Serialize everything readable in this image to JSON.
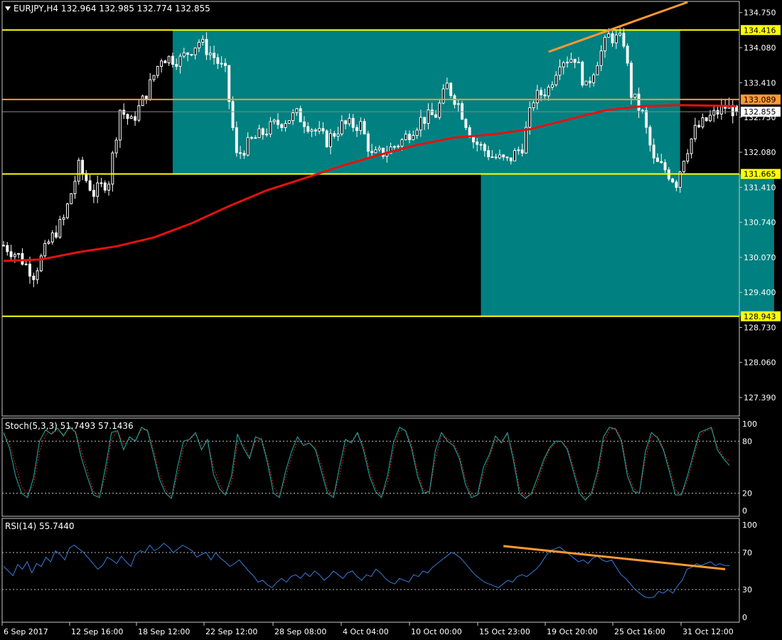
{
  "colors": {
    "background": "#000000",
    "frame": "#c8c8c8",
    "axis_text": "#ffffff",
    "candle": "#ffffff",
    "zone": "#008080",
    "level_line": "#ffff00",
    "orange": "#ff9933",
    "ma": "#e81010",
    "stoch_main": "#20b2aa",
    "stoch_signal": "#e02020",
    "rsi": "#3a7ad8",
    "bid_label_bg": "#ffffff",
    "bid_label_text": "#000000"
  },
  "chart_data": [
    {
      "type": "candlestick",
      "title": "EURJPY,H4  132.964 132.985 132.774 132.855",
      "symbol": "EURJPY,H4",
      "ohlc": {
        "open": 132.964,
        "high": 132.985,
        "low": 132.774,
        "close": 132.855
      },
      "ylim": [
        127.05,
        134.95
      ],
      "y_ticks": [
        "134.750",
        "134.080",
        "133.410",
        "132.750",
        "132.080",
        "131.410",
        "130.740",
        "130.070",
        "129.400",
        "128.730",
        "128.060",
        "127.390"
      ],
      "x_ticks": [
        "6 Sep 2017",
        "12 Sep 16:00",
        "18 Sep 12:00",
        "22 Sep 12:00",
        "28 Sep 08:00",
        "4 Oct 04:00",
        "10 Oct 00:00",
        "15 Oct 23:00",
        "19 Oct 20:00",
        "25 Oct 16:00",
        "31 Oct 12:00"
      ],
      "levels": [
        {
          "label": "134.416",
          "value": 134.416,
          "color": "#ffff00"
        },
        {
          "label": "133.089",
          "value": 133.089,
          "color": "#ff9933"
        },
        {
          "label": "131.665",
          "value": 131.665,
          "color": "#ffff00"
        },
        {
          "label": "128.943",
          "value": 128.943,
          "color": "#ffff00"
        }
      ],
      "bid_label": "132.855",
      "zones": [
        {
          "from_bar": 45,
          "to_bar": 180,
          "top": 134.416,
          "bottom": 131.665
        },
        {
          "from_bar": 127,
          "to_bar": 205,
          "top": 131.665,
          "bottom": 128.943
        }
      ],
      "trendline": [
        {
          "bar": 145,
          "price": 134.0
        },
        {
          "bar": 182,
          "price": 134.95
        }
      ],
      "close_path": [
        {
          "bar": 0,
          "price": 130.3
        },
        {
          "bar": 4,
          "price": 130.1
        },
        {
          "bar": 8,
          "price": 129.75
        },
        {
          "bar": 12,
          "price": 130.35
        },
        {
          "bar": 16,
          "price": 130.8
        },
        {
          "bar": 20,
          "price": 131.8
        },
        {
          "bar": 24,
          "price": 131.3
        },
        {
          "bar": 28,
          "price": 131.55
        },
        {
          "bar": 31,
          "price": 132.9
        },
        {
          "bar": 34,
          "price": 132.65
        },
        {
          "bar": 38,
          "price": 133.2
        },
        {
          "bar": 42,
          "price": 133.9
        },
        {
          "bar": 47,
          "price": 133.85
        },
        {
          "bar": 52,
          "price": 134.2
        },
        {
          "bar": 56,
          "price": 133.9
        },
        {
          "bar": 59,
          "price": 133.6
        },
        {
          "bar": 62,
          "price": 132.0
        },
        {
          "bar": 66,
          "price": 132.3
        },
        {
          "bar": 72,
          "price": 132.6
        },
        {
          "bar": 78,
          "price": 132.8
        },
        {
          "bar": 82,
          "price": 132.55
        },
        {
          "bar": 86,
          "price": 132.3
        },
        {
          "bar": 90,
          "price": 132.6
        },
        {
          "bar": 95,
          "price": 132.6
        },
        {
          "bar": 98,
          "price": 132.0
        },
        {
          "bar": 102,
          "price": 132.1
        },
        {
          "bar": 106,
          "price": 132.3
        },
        {
          "bar": 111,
          "price": 132.7
        },
        {
          "bar": 115,
          "price": 132.8
        },
        {
          "bar": 118,
          "price": 133.35
        },
        {
          "bar": 121,
          "price": 133.0
        },
        {
          "bar": 125,
          "price": 132.3
        },
        {
          "bar": 130,
          "price": 132.0
        },
        {
          "bar": 134,
          "price": 131.9
        },
        {
          "bar": 138,
          "price": 132.2
        },
        {
          "bar": 141,
          "price": 133.1
        },
        {
          "bar": 145,
          "price": 133.3
        },
        {
          "bar": 148,
          "price": 133.85
        },
        {
          "bar": 152,
          "price": 133.9
        },
        {
          "bar": 155,
          "price": 133.3
        },
        {
          "bar": 158,
          "price": 133.85
        },
        {
          "bar": 161,
          "price": 134.3
        },
        {
          "bar": 165,
          "price": 134.2
        },
        {
          "bar": 167,
          "price": 133.2
        },
        {
          "bar": 170,
          "price": 132.8
        },
        {
          "bar": 173,
          "price": 131.9
        },
        {
          "bar": 176,
          "price": 131.75
        },
        {
          "bar": 179,
          "price": 131.5
        },
        {
          "bar": 181,
          "price": 132.0
        },
        {
          "bar": 184,
          "price": 132.5
        },
        {
          "bar": 188,
          "price": 132.75
        },
        {
          "bar": 192,
          "price": 132.95
        },
        {
          "bar": 195,
          "price": 132.86
        }
      ],
      "moving_average": [
        {
          "bar": 0,
          "price": 130.0
        },
        {
          "bar": 10,
          "price": 130.03
        },
        {
          "bar": 20,
          "price": 130.17
        },
        {
          "bar": 30,
          "price": 130.28
        },
        {
          "bar": 40,
          "price": 130.45
        },
        {
          "bar": 50,
          "price": 130.72
        },
        {
          "bar": 60,
          "price": 131.05
        },
        {
          "bar": 70,
          "price": 131.35
        },
        {
          "bar": 80,
          "price": 131.58
        },
        {
          "bar": 90,
          "price": 131.82
        },
        {
          "bar": 100,
          "price": 132.03
        },
        {
          "bar": 110,
          "price": 132.22
        },
        {
          "bar": 120,
          "price": 132.36
        },
        {
          "bar": 130,
          "price": 132.42
        },
        {
          "bar": 140,
          "price": 132.52
        },
        {
          "bar": 150,
          "price": 132.7
        },
        {
          "bar": 160,
          "price": 132.88
        },
        {
          "bar": 170,
          "price": 132.96
        },
        {
          "bar": 180,
          "price": 132.98
        },
        {
          "bar": 190,
          "price": 132.97
        },
        {
          "bar": 195,
          "price": 132.96
        }
      ]
    },
    {
      "type": "line",
      "title": "Stoch(5,3,3) 51.7493 57.1436",
      "ylim": [
        0,
        100
      ],
      "y_ticks": [
        "100",
        "80",
        "20",
        "0"
      ],
      "levels": [
        80,
        20
      ],
      "series": [
        {
          "name": "51.7493",
          "values": [
            90,
            72,
            40,
            20,
            15,
            38,
            80,
            93,
            88,
            95,
            86,
            97,
            90,
            60,
            38,
            18,
            15,
            50,
            90,
            92,
            70,
            85,
            80,
            96,
            92,
            65,
            36,
            20,
            14,
            50,
            80,
            82,
            90,
            70,
            82,
            42,
            25,
            18,
            40,
            88,
            72,
            60,
            85,
            82,
            55,
            20,
            15,
            45,
            68,
            85,
            75,
            78,
            70,
            45,
            20,
            15,
            50,
            82,
            78,
            90,
            70,
            40,
            22,
            15,
            40,
            78,
            96,
            92,
            72,
            40,
            20,
            22,
            70,
            90,
            80,
            75,
            60,
            30,
            15,
            18,
            50,
            65,
            86,
            78,
            90,
            58,
            20,
            14,
            20,
            38,
            58,
            72,
            80,
            80,
            70,
            45,
            20,
            12,
            20,
            45,
            85,
            96,
            94,
            80,
            40,
            22,
            20,
            68,
            90,
            84,
            70,
            45,
            18,
            18,
            40,
            65,
            90,
            93,
            96,
            70,
            60,
            52
          ]
        },
        {
          "name": "57.1436",
          "values": [
            88,
            78,
            52,
            28,
            18,
            30,
            68,
            88,
            90,
            92,
            88,
            95,
            92,
            68,
            45,
            22,
            16,
            40,
            82,
            92,
            76,
            82,
            82,
            93,
            93,
            70,
            42,
            24,
            16,
            40,
            72,
            82,
            88,
            75,
            80,
            50,
            30,
            20,
            32,
            78,
            76,
            62,
            80,
            83,
            60,
            28,
            17,
            38,
            62,
            80,
            77,
            77,
            72,
            52,
            25,
            16,
            40,
            74,
            80,
            88,
            75,
            46,
            26,
            17,
            32,
            70,
            92,
            93,
            76,
            46,
            24,
            21,
            60,
            86,
            83,
            77,
            64,
            36,
            18,
            17,
            42,
            62,
            82,
            80,
            88,
            64,
            26,
            16,
            18,
            32,
            54,
            70,
            78,
            80,
            72,
            50,
            25,
            14,
            18,
            38,
            78,
            93,
            95,
            83,
            46,
            26,
            20,
            60,
            86,
            86,
            72,
            50,
            24,
            18,
            34,
            60,
            86,
            92,
            94,
            74,
            62,
            57
          ]
        }
      ]
    },
    {
      "type": "line",
      "title": "RSI(14) 55.7440",
      "ylim": [
        0,
        100
      ],
      "y_ticks": [
        "100",
        "70",
        "30",
        "0"
      ],
      "levels": [
        70,
        30
      ],
      "trendline": [
        {
          "bar": 133,
          "value": 77
        },
        {
          "bar": 192,
          "value": 52
        }
      ],
      "series": [
        {
          "name": "55.7440",
          "values": [
            55,
            50,
            45,
            57,
            52,
            60,
            48,
            58,
            55,
            65,
            60,
            72,
            68,
            62,
            75,
            78,
            74,
            70,
            64,
            58,
            52,
            56,
            65,
            62,
            58,
            66,
            60,
            55,
            68,
            72,
            70,
            78,
            72,
            75,
            80,
            76,
            70,
            74,
            78,
            75,
            72,
            65,
            68,
            70,
            62,
            70,
            64,
            60,
            55,
            58,
            62,
            56,
            50,
            45,
            38,
            40,
            35,
            32,
            38,
            42,
            38,
            44,
            46,
            42,
            48,
            44,
            50,
            46,
            40,
            44,
            50,
            46,
            42,
            48,
            50,
            44,
            40,
            46,
            44,
            52,
            48,
            42,
            38,
            36,
            42,
            40,
            38,
            46,
            44,
            50,
            48,
            54,
            58,
            62,
            66,
            70,
            68,
            64,
            58,
            52,
            46,
            42,
            38,
            36,
            34,
            32,
            36,
            40,
            38,
            44,
            46,
            44,
            48,
            52,
            58,
            66,
            72,
            74,
            76,
            72,
            68,
            64,
            60,
            62,
            58,
            64,
            66,
            62,
            60,
            62,
            54,
            46,
            42,
            36,
            30,
            26,
            22,
            21,
            22,
            28,
            26,
            30,
            26,
            34,
            40,
            52,
            54,
            58,
            56,
            58,
            60,
            56,
            58,
            56,
            55.74
          ]
        }
      ]
    }
  ]
}
